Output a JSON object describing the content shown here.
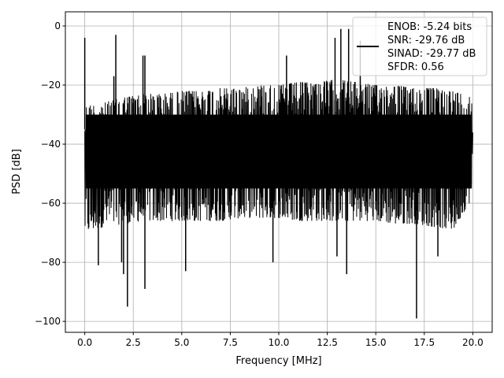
{
  "chart_data": {
    "type": "line",
    "xlabel": "Frequency [MHz]",
    "ylabel": "PSD [dB]",
    "xlim": [
      -1.0,
      21.0
    ],
    "ylim": [
      -103.7,
      4.8
    ],
    "xticks": [
      0.0,
      2.5,
      5.0,
      7.5,
      10.0,
      12.5,
      15.0,
      17.5,
      20.0
    ],
    "xtick_labels": [
      "0.0",
      "2.5",
      "5.0",
      "7.5",
      "10.0",
      "12.5",
      "15.0",
      "17.5",
      "20.0"
    ],
    "yticks": [
      0,
      -20,
      -40,
      -60,
      -80,
      -100
    ],
    "ytick_labels": [
      "0",
      "−20",
      "−40",
      "−60",
      "−80",
      "−100"
    ],
    "grid": true,
    "line_color": "#000000",
    "legend_placement": "top-right",
    "legend": [
      "ENOB: -5.24 bits",
      "SNR: -29.76 dB",
      "SINAD: -29.77 dB",
      "SFDR: 0.56"
    ],
    "envelope": {
      "x": [
        0,
        1,
        2,
        3,
        4,
        5,
        6,
        7,
        8,
        9,
        10,
        11,
        12,
        13,
        14,
        15,
        16,
        17,
        18,
        19,
        20
      ],
      "upper": [
        -27,
        -26,
        -24,
        -23,
        -23,
        -22,
        -22,
        -21,
        -21,
        -20,
        -20,
        -19,
        -19,
        -18,
        -19,
        -20,
        -20,
        -21,
        -21,
        -22,
        -24
      ],
      "lower": [
        -70,
        -68,
        -67,
        -66,
        -66,
        -66,
        -66,
        -66,
        -65,
        -65,
        -65,
        -66,
        -66,
        -66,
        -66,
        -66,
        -67,
        -67,
        -68,
        -69,
        -58
      ]
    },
    "peaks": [
      {
        "x": 0.0,
        "y": -4
      },
      {
        "x": 1.6,
        "y": -3
      },
      {
        "x": 1.5,
        "y": -17
      },
      {
        "x": 3.0,
        "y": -10
      },
      {
        "x": 3.1,
        "y": -10
      },
      {
        "x": 10.4,
        "y": -10
      },
      {
        "x": 13.2,
        "y": -1
      },
      {
        "x": 13.6,
        "y": -1
      },
      {
        "x": 14.2,
        "y": -5
      },
      {
        "x": 12.9,
        "y": -4
      }
    ],
    "dips": [
      {
        "x": 0.7,
        "y": -81
      },
      {
        "x": 1.9,
        "y": -80
      },
      {
        "x": 2.0,
        "y": -84
      },
      {
        "x": 2.2,
        "y": -95
      },
      {
        "x": 3.1,
        "y": -89
      },
      {
        "x": 5.2,
        "y": -83
      },
      {
        "x": 9.7,
        "y": -80
      },
      {
        "x": 13.0,
        "y": -78
      },
      {
        "x": 13.5,
        "y": -84
      },
      {
        "x": 17.1,
        "y": -99
      },
      {
        "x": 18.2,
        "y": -78
      }
    ]
  }
}
